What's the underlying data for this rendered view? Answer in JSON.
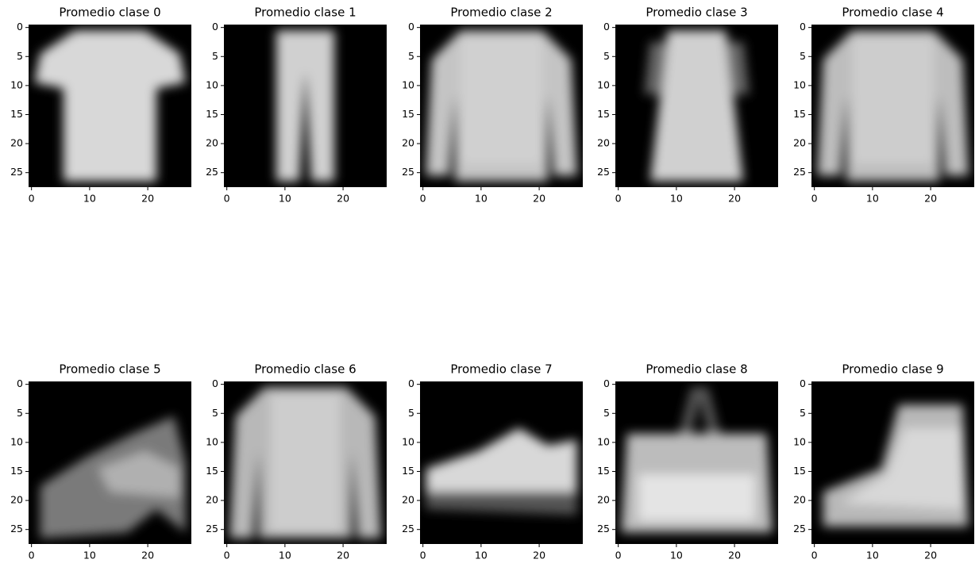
{
  "chart_data": [
    {
      "type": "image",
      "title": "Promedio clase 0",
      "xlim": [
        -0.5,
        27.5
      ],
      "ylim": [
        27.5,
        -0.5
      ],
      "xticks": [
        0,
        10,
        20
      ],
      "yticks": [
        0,
        5,
        10,
        15,
        20,
        25
      ]
    },
    {
      "type": "image",
      "title": "Promedio clase 1",
      "xlim": [
        -0.5,
        27.5
      ],
      "ylim": [
        27.5,
        -0.5
      ],
      "xticks": [
        0,
        10,
        20
      ],
      "yticks": [
        0,
        5,
        10,
        15,
        20,
        25
      ]
    },
    {
      "type": "image",
      "title": "Promedio clase 2",
      "xlim": [
        -0.5,
        27.5
      ],
      "ylim": [
        27.5,
        -0.5
      ],
      "xticks": [
        0,
        10,
        20
      ],
      "yticks": [
        0,
        5,
        10,
        15,
        20,
        25
      ]
    },
    {
      "type": "image",
      "title": "Promedio clase 3",
      "xlim": [
        -0.5,
        27.5
      ],
      "ylim": [
        27.5,
        -0.5
      ],
      "xticks": [
        0,
        10,
        20
      ],
      "yticks": [
        0,
        5,
        10,
        15,
        20,
        25
      ]
    },
    {
      "type": "image",
      "title": "Promedio clase 4",
      "xlim": [
        -0.5,
        27.5
      ],
      "ylim": [
        27.5,
        -0.5
      ],
      "xticks": [
        0,
        10,
        20
      ],
      "yticks": [
        0,
        5,
        10,
        15,
        20,
        25
      ]
    },
    {
      "type": "image",
      "title": "Promedio clase 5",
      "xlim": [
        -0.5,
        27.5
      ],
      "ylim": [
        27.5,
        -0.5
      ],
      "xticks": [
        0,
        10,
        20
      ],
      "yticks": [
        0,
        5,
        10,
        15,
        20,
        25
      ]
    },
    {
      "type": "image",
      "title": "Promedio clase 6",
      "xlim": [
        -0.5,
        27.5
      ],
      "ylim": [
        27.5,
        -0.5
      ],
      "xticks": [
        0,
        10,
        20
      ],
      "yticks": [
        0,
        5,
        10,
        15,
        20,
        25
      ]
    },
    {
      "type": "image",
      "title": "Promedio clase 7",
      "xlim": [
        -0.5,
        27.5
      ],
      "ylim": [
        27.5,
        -0.5
      ],
      "xticks": [
        0,
        10,
        20
      ],
      "yticks": [
        0,
        5,
        10,
        15,
        20,
        25
      ]
    },
    {
      "type": "image",
      "title": "Promedio clase 8",
      "xlim": [
        -0.5,
        27.5
      ],
      "ylim": [
        27.5,
        -0.5
      ],
      "xticks": [
        0,
        10,
        20
      ],
      "yticks": [
        0,
        5,
        10,
        15,
        20,
        25
      ]
    },
    {
      "type": "image",
      "title": "Promedio clase 9",
      "xlim": [
        -0.5,
        27.5
      ],
      "ylim": [
        27.5,
        -0.5
      ],
      "xticks": [
        0,
        10,
        20
      ],
      "yticks": [
        0,
        5,
        10,
        15,
        20,
        25
      ]
    }
  ]
}
